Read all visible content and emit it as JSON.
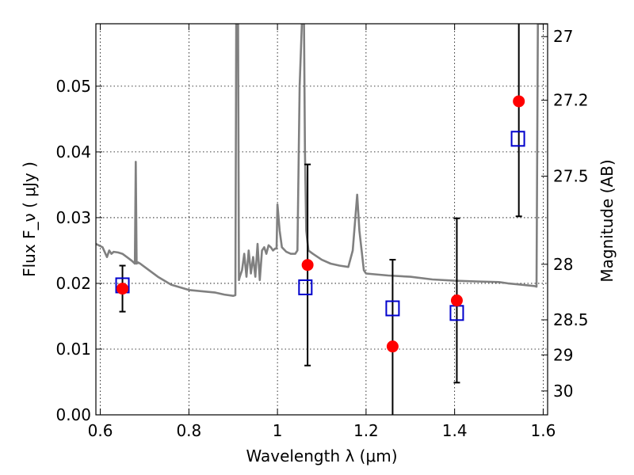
{
  "chart_data": {
    "type": "scatter",
    "xlabel": "Wavelength  λ (μm)",
    "ylabel": "Flux  F_ν  ( μJy )",
    "ylabel_right": "Magnitude (AB)",
    "xlim": [
      0.59,
      1.61
    ],
    "ylim": [
      0.0,
      0.0595
    ],
    "grid": true,
    "x_ticks": [
      {
        "value": 0.6,
        "label": "0.6"
      },
      {
        "value": 0.8,
        "label": "0.8"
      },
      {
        "value": 1.0,
        "label": "1"
      },
      {
        "value": 1.2,
        "label": "1.2"
      },
      {
        "value": 1.4,
        "label": "1.4"
      },
      {
        "value": 1.6,
        "label": "1.6"
      }
    ],
    "y_ticks": [
      {
        "value": 0.0,
        "label": "0.00"
      },
      {
        "value": 0.01,
        "label": "0.01"
      },
      {
        "value": 0.02,
        "label": "0.02"
      },
      {
        "value": 0.03,
        "label": "0.03"
      },
      {
        "value": 0.04,
        "label": "0.04"
      },
      {
        "value": 0.05,
        "label": "0.05"
      }
    ],
    "mag_ticks": [
      {
        "mag": 27,
        "label": "27"
      },
      {
        "mag": 27.2,
        "label": "27.2"
      },
      {
        "mag": 27.5,
        "label": "27.5"
      },
      {
        "mag": 28,
        "label": "28"
      },
      {
        "mag": 28.5,
        "label": "28.5"
      },
      {
        "mag": 29,
        "label": "29"
      },
      {
        "mag": 30,
        "label": "30"
      }
    ],
    "series": [
      {
        "kind": "line",
        "color": "#808080",
        "x": [
          0.59,
          0.605,
          0.615,
          0.62,
          0.625,
          0.63,
          0.64,
          0.65,
          0.66,
          0.67,
          0.675,
          0.678,
          0.68,
          0.682,
          0.685,
          0.69,
          0.7,
          0.73,
          0.76,
          0.8,
          0.83,
          0.86,
          0.88,
          0.9,
          0.905,
          0.907,
          0.909,
          0.911,
          0.913,
          0.915,
          0.92,
          0.925,
          0.93,
          0.935,
          0.94,
          0.945,
          0.95,
          0.955,
          0.96,
          0.965,
          0.97,
          0.975,
          0.98,
          0.985,
          0.99,
          0.995,
          0.998,
          1.0,
          1.005,
          1.01,
          1.02,
          1.03,
          1.04,
          1.045,
          1.05,
          1.055,
          1.058,
          1.06,
          1.062,
          1.065,
          1.07,
          1.08,
          1.1,
          1.12,
          1.14,
          1.16,
          1.17,
          1.18,
          1.185,
          1.19,
          1.195,
          1.2,
          1.25,
          1.3,
          1.35,
          1.4,
          1.45,
          1.5,
          1.52,
          1.55,
          1.58,
          1.585,
          1.588,
          1.59,
          1.61
        ],
        "y": [
          0.026,
          0.0255,
          0.024,
          0.025,
          0.0245,
          0.0248,
          0.0247,
          0.0245,
          0.024,
          0.0235,
          0.0232,
          0.023,
          0.0385,
          0.023,
          0.0232,
          0.023,
          0.0225,
          0.021,
          0.0198,
          0.019,
          0.0188,
          0.0186,
          0.0183,
          0.0181,
          0.0182,
          0.0595,
          0.0595,
          0.0595,
          0.0205,
          0.021,
          0.022,
          0.0245,
          0.021,
          0.025,
          0.0215,
          0.024,
          0.021,
          0.026,
          0.0205,
          0.025,
          0.0255,
          0.0245,
          0.0258,
          0.0255,
          0.025,
          0.0253,
          0.0253,
          0.032,
          0.028,
          0.0255,
          0.0248,
          0.0245,
          0.0245,
          0.025,
          0.05,
          0.0595,
          0.0595,
          0.0595,
          0.04,
          0.028,
          0.025,
          0.0245,
          0.0236,
          0.023,
          0.0227,
          0.0225,
          0.025,
          0.0335,
          0.028,
          0.025,
          0.022,
          0.0215,
          0.0212,
          0.021,
          0.0206,
          0.0204,
          0.0203,
          0.0202,
          0.02,
          0.0198,
          0.0196,
          0.0195,
          0.0595,
          0.0595,
          0.0595
        ]
      },
      {
        "kind": "errorbar",
        "marker": "circle",
        "color": "#ff0000",
        "points": [
          {
            "x": 0.65,
            "y": 0.0192,
            "err_lo": 0.0035,
            "err_hi": 0.0035
          },
          {
            "x": 1.068,
            "y": 0.0228,
            "err_lo": 0.0153,
            "err_hi": 0.0153
          },
          {
            "x": 1.26,
            "y": 0.0104,
            "err_lo": 0.0132,
            "err_hi": 0.0132
          },
          {
            "x": 1.405,
            "y": 0.0174,
            "err_lo": 0.0125,
            "err_hi": 0.0125
          },
          {
            "x": 1.545,
            "y": 0.0477,
            "err_lo": 0.0175,
            "err_hi": 0.0175
          }
        ]
      },
      {
        "kind": "marker",
        "marker": "open-square",
        "color": "#0000cc",
        "points": [
          {
            "x": 0.65,
            "y": 0.0197
          },
          {
            "x": 1.063,
            "y": 0.0194
          },
          {
            "x": 1.26,
            "y": 0.0162
          },
          {
            "x": 1.405,
            "y": 0.0155
          },
          {
            "x": 1.543,
            "y": 0.042
          }
        ]
      }
    ]
  }
}
